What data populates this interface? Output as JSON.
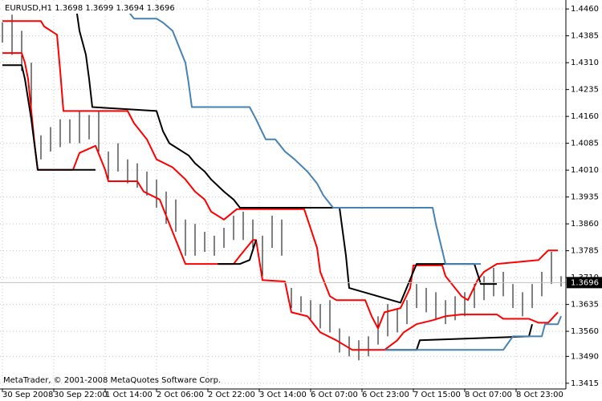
{
  "chart_data": {
    "type": "ohlc",
    "title": "EURUSD,H1  1.3698 1.3699 1.3694 1.3696",
    "annotation": "MetaTrader, © 2001-2008 MetaQuotes Software Corp.",
    "current_price": 1.3696,
    "grid": true,
    "xlim": [
      -0.75,
      175.5
    ],
    "ylim": [
      1.3399,
      1.4485
    ],
    "xticks": [
      {
        "value": 0,
        "label": "30 Sep 2008"
      },
      {
        "value": 16,
        "label": "30 Sep 22:00"
      },
      {
        "value": 32,
        "label": "1 Oct 14:00"
      },
      {
        "value": 48,
        "label": "2 Oct 06:00"
      },
      {
        "value": 64,
        "label": "2 Oct 22:00"
      },
      {
        "value": 80,
        "label": "3 Oct 14:00"
      },
      {
        "value": 96,
        "label": "6 Oct 07:00"
      },
      {
        "value": 112,
        "label": "6 Oct 23:00"
      },
      {
        "value": 128,
        "label": "7 Oct 15:00"
      },
      {
        "value": 144,
        "label": "8 Oct 07:00"
      },
      {
        "value": 160,
        "label": "8 Oct 23:00"
      }
    ],
    "yticks": [
      {
        "value": 1.446,
        "label": "1.4460"
      },
      1.4385,
      {
        "value": 1.431,
        "label": "1.4310"
      },
      1.4235,
      {
        "value": 1.416,
        "label": "1.4160"
      },
      1.4085,
      {
        "value": 1.401,
        "label": "1.4010"
      },
      1.3935,
      {
        "value": 1.386,
        "label": "1.3860"
      },
      1.3785,
      {
        "value": 1.371,
        "label": "1.3710"
      },
      1.3635,
      {
        "value": 1.356,
        "label": "1.3560"
      },
      {
        "value": 1.349,
        "label": "1.3490"
      },
      1.3415
    ],
    "bars": {
      "color": "#000000",
      "x": [
        0,
        3,
        6,
        9,
        12,
        15,
        18,
        21,
        24,
        27,
        30,
        33,
        36,
        39,
        42,
        45,
        48,
        51,
        54,
        57,
        60,
        63,
        66,
        69,
        72,
        75,
        78,
        81,
        84,
        87,
        90,
        93,
        96,
        99,
        102,
        105,
        108,
        111,
        114,
        117,
        120,
        123,
        126,
        129,
        132,
        135,
        138,
        141,
        144,
        147,
        150,
        153,
        156,
        159,
        162,
        165,
        168,
        171,
        174
      ],
      "high": [
        1.4422,
        1.4444,
        1.4399,
        1.431,
        1.4107,
        1.413,
        1.4152,
        1.4152,
        1.4175,
        1.4164,
        1.4175,
        1.4062,
        1.4085,
        1.404,
        1.4029,
        1.4006,
        1.3984,
        1.395,
        1.3928,
        1.3872,
        1.386,
        1.3838,
        1.3827,
        1.3849,
        1.3883,
        1.3894,
        1.3872,
        1.3827,
        1.3883,
        1.3872,
        1.3681,
        1.3658,
        1.3647,
        1.3636,
        1.3647,
        1.3568,
        1.3546,
        1.3535,
        1.3546,
        1.3602,
        1.3636,
        1.3625,
        1.3647,
        1.3692,
        1.3681,
        1.3669,
        1.3647,
        1.3658,
        1.3669,
        1.3692,
        1.3714,
        1.3737,
        1.3726,
        1.3692,
        1.3669,
        1.3692,
        1.3726,
        1.3782,
        1.3714
      ],
      "low": [
        1.4366,
        1.4332,
        1.4287,
        1.4152,
        1.404,
        1.4062,
        1.4074,
        1.4085,
        1.4085,
        1.4096,
        1.4062,
        1.3984,
        1.4006,
        1.3973,
        1.3961,
        1.3939,
        1.3905,
        1.386,
        1.3838,
        1.3771,
        1.3771,
        1.3782,
        1.3771,
        1.3793,
        1.3815,
        1.3815,
        1.3793,
        1.3714,
        1.3793,
        1.3771,
        1.3625,
        1.3613,
        1.3591,
        1.3568,
        1.3557,
        1.3501,
        1.349,
        1.3479,
        1.349,
        1.3523,
        1.3546,
        1.3557,
        1.358,
        1.3625,
        1.3613,
        1.3591,
        1.358,
        1.3591,
        1.3602,
        1.3625,
        1.3647,
        1.3658,
        1.3658,
        1.3625,
        1.3602,
        1.3625,
        1.3658,
        1.3692,
        1.3685
      ]
    },
    "series": [
      {
        "color": "#ff0000",
        "x": [
          0,
          12,
          13,
          17,
          18,
          19,
          39,
          41,
          45,
          48,
          53,
          57,
          60,
          63,
          65,
          69,
          73,
          94,
          98,
          99,
          102,
          104,
          113,
          115,
          117,
          119,
          124,
          127,
          128,
          137,
          138,
          143,
          145,
          148,
          150,
          154,
          167,
          170,
          173
        ],
        "values": [
          1.4426,
          1.4426,
          1.4411,
          1.4388,
          1.4287,
          1.4175,
          1.4175,
          1.4141,
          1.4096,
          1.404,
          1.4018,
          1.3984,
          1.395,
          1.3928,
          1.3894,
          1.3872,
          1.3901,
          1.3901,
          1.3793,
          1.3726,
          1.3658,
          1.3647,
          1.3647,
          1.3602,
          1.3568,
          1.3613,
          1.3625,
          1.3681,
          1.3744,
          1.3744,
          1.3714,
          1.3658,
          1.3647,
          1.3703,
          1.3726,
          1.3748,
          1.3759,
          1.3786,
          1.3786
        ]
      },
      {
        "color": "#ff0000",
        "x": [
          0,
          6,
          7,
          8,
          9,
          10,
          11,
          22,
          24,
          29,
          32,
          33,
          42,
          44,
          49,
          52,
          57,
          72,
          74,
          78,
          79,
          81,
          88,
          90,
          95,
          99,
          104,
          109,
          119,
          123,
          125,
          129,
          134,
          138,
          143,
          154,
          156,
          164,
          167,
          170,
          173
        ],
        "values": [
          1.4337,
          1.4337,
          1.431,
          1.4265,
          1.4175,
          1.4085,
          1.4011,
          1.4011,
          1.4058,
          1.4078,
          1.4011,
          1.3979,
          1.3979,
          1.395,
          1.3928,
          1.386,
          1.3748,
          1.3748,
          1.3771,
          1.3815,
          1.3815,
          1.3703,
          1.3699,
          1.3613,
          1.3602,
          1.3557,
          1.3535,
          1.3508,
          1.3508,
          1.3535,
          1.3557,
          1.358,
          1.3591,
          1.3602,
          1.3607,
          1.3607,
          1.3595,
          1.3595,
          1.3584,
          1.3584,
          1.3613
        ]
      },
      {
        "color": "#000000",
        "x": [
          0,
          23,
          24,
          26,
          27,
          28,
          48,
          50,
          52,
          58,
          60,
          63,
          65,
          69,
          72,
          74,
          105,
          107,
          108,
          124,
          129,
          147,
          149,
          154
        ],
        "values": [
          1.4462,
          1.4462,
          1.4399,
          1.4332,
          1.4265,
          1.4186,
          1.4175,
          1.4119,
          1.4085,
          1.4051,
          1.4029,
          1.4006,
          1.3984,
          1.395,
          1.3928,
          1.3905,
          1.3905,
          1.3771,
          1.3681,
          1.364,
          1.3748,
          1.3748,
          1.3692,
          1.3692
        ]
      },
      {
        "color": "#000000",
        "x": [
          0,
          6,
          7,
          9,
          11,
          29,
          null,
          67,
          74,
          77,
          79,
          null,
          119,
          129,
          130,
          164,
          165
        ],
        "values": [
          1.4303,
          1.4303,
          1.4265,
          1.4152,
          1.4011,
          1.4011,
          null,
          1.3748,
          1.3748,
          1.3759,
          1.3815,
          null,
          1.3508,
          1.3508,
          1.3535,
          1.3546,
          1.358
        ]
      },
      {
        "color": "#4682b4",
        "x": [
          37,
          41,
          48,
          50,
          53,
          57,
          58,
          59,
          77,
          79,
          82,
          85,
          88,
          91,
          95,
          98,
          100,
          103,
          134,
          135,
          138,
          149,
          null,
          119,
          156,
          159,
          168,
          169,
          173,
          174
        ],
        "values": [
          1.4478,
          1.4433,
          1.4433,
          1.4422,
          1.4399,
          1.431,
          1.4253,
          1.4186,
          1.4186,
          1.4152,
          1.4096,
          1.4096,
          1.4062,
          1.404,
          1.4006,
          1.3973,
          1.3939,
          1.3905,
          1.3905,
          1.386,
          1.3748,
          1.3748,
          null,
          1.3508,
          1.3508,
          1.3546,
          1.3546,
          1.358,
          1.358,
          1.3602
        ]
      }
    ]
  }
}
